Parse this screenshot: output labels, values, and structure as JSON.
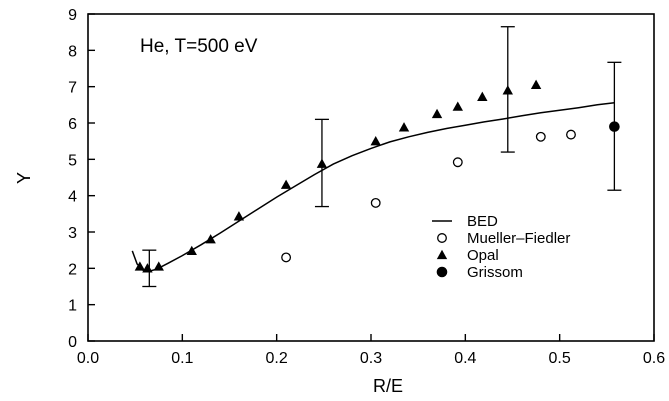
{
  "chart_data": {
    "type": "scatter",
    "title": "",
    "annotation": "He, T=500 eV",
    "xlabel": "R/E",
    "ylabel": "Y",
    "xlim": [
      0.0,
      0.6
    ],
    "ylim": [
      0,
      9
    ],
    "xticks": [
      "0.0",
      "0.1",
      "0.2",
      "0.3",
      "0.4",
      "0.5",
      "0.6"
    ],
    "yticks": [
      "0",
      "1",
      "2",
      "3",
      "4",
      "5",
      "6",
      "7",
      "8",
      "9"
    ],
    "grid": false,
    "legend_position": "lower-right",
    "series": [
      {
        "name": "BED",
        "type": "line",
        "x": [
          0.047,
          0.052,
          0.058,
          0.065,
          0.073,
          0.085,
          0.1,
          0.12,
          0.14,
          0.16,
          0.18,
          0.2,
          0.22,
          0.24,
          0.26,
          0.28,
          0.3,
          0.32,
          0.34,
          0.36,
          0.38,
          0.4,
          0.42,
          0.44,
          0.46,
          0.48,
          0.5,
          0.52,
          0.54,
          0.558
        ],
        "y": [
          2.48,
          2.12,
          1.95,
          1.92,
          1.98,
          2.14,
          2.35,
          2.65,
          2.97,
          3.3,
          3.63,
          3.96,
          4.27,
          4.58,
          4.87,
          5.1,
          5.3,
          5.48,
          5.62,
          5.74,
          5.85,
          5.94,
          6.03,
          6.11,
          6.2,
          6.28,
          6.35,
          6.42,
          6.5,
          6.56
        ]
      },
      {
        "name": "Mueller–Fiedler",
        "type": "scatter",
        "marker": "open-circle",
        "x": [
          0.21,
          0.305,
          0.392,
          0.48,
          0.512
        ],
        "y": [
          2.3,
          3.8,
          4.92,
          5.62,
          5.68
        ]
      },
      {
        "name": "Opal",
        "type": "scatter",
        "marker": "filled-triangle",
        "x": [
          0.055,
          0.063,
          0.075,
          0.11,
          0.13,
          0.16,
          0.21,
          0.248,
          0.305,
          0.335,
          0.37,
          0.392,
          0.418,
          0.445,
          0.475
        ],
        "y": [
          2.05,
          2.0,
          2.05,
          2.48,
          2.8,
          3.43,
          4.3,
          4.88,
          5.5,
          5.88,
          6.25,
          6.45,
          6.72,
          6.9,
          7.05
        ]
      },
      {
        "name": "Grissom",
        "type": "scatter",
        "marker": "filled-circle",
        "x": [
          0.558
        ],
        "y": [
          5.9
        ]
      }
    ],
    "error_bars": [
      {
        "x": 0.065,
        "low": 1.5,
        "high": 2.5
      },
      {
        "x": 0.248,
        "low": 3.7,
        "high": 6.1
      },
      {
        "x": 0.445,
        "low": 5.2,
        "high": 8.65
      },
      {
        "x": 0.558,
        "low": 4.15,
        "high": 7.67
      }
    ]
  }
}
